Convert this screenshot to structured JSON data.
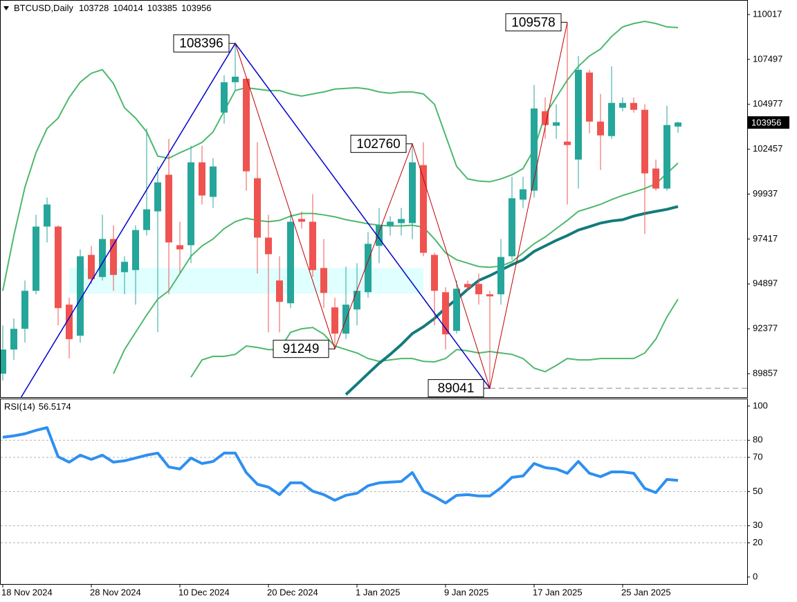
{
  "chart_data": [
    {
      "type": "candlestick",
      "symbol": "BTCUSD,Daily",
      "header_values": [
        103728,
        104014,
        103385,
        103956
      ],
      "categories": [
        "18 Nov 2024",
        null,
        null,
        null,
        null,
        null,
        null,
        null,
        "28 Nov 2024",
        null,
        null,
        null,
        null,
        null,
        null,
        null,
        "10 Dec 2024",
        null,
        null,
        null,
        null,
        null,
        null,
        null,
        "20 Dec 2024",
        null,
        null,
        null,
        null,
        null,
        null,
        null,
        "1 Jan 2025",
        null,
        null,
        null,
        null,
        null,
        null,
        null,
        "9 Jan 2025",
        null,
        null,
        null,
        null,
        null,
        null,
        null,
        "17 Jan 2025",
        null,
        null,
        null,
        null,
        null,
        null,
        null,
        "25 Jan 2025",
        null,
        null,
        null,
        null,
        null
      ],
      "open": [
        89856,
        91213,
        92377,
        94509,
        98114,
        98114,
        93733,
        91989,
        96525,
        95284,
        97417,
        95555,
        95672,
        97920,
        98967,
        101022,
        97068,
        97068,
        101720,
        99781,
        104511,
        106217,
        106411,
        100828,
        97494,
        95090,
        93810,
        98541,
        98386,
        95788,
        93578,
        92105,
        93462,
        94431,
        97029,
        98153,
        98308,
        98308,
        101565,
        96525,
        94431,
        92260,
        94896,
        94896,
        94314,
        94314,
        96447,
        99626,
        100130,
        104589,
        103775,
        102883,
        101875,
        106760,
        104007,
        103193,
        104783,
        105054,
        104667,
        101371,
        100247,
        103728
      ],
      "high": [
        92570,
        92958,
        95090,
        98773,
        99743,
        98192,
        94121,
        96835,
        97029,
        98773,
        98192,
        96447,
        98192,
        103620,
        101488,
        103038,
        98386,
        102651,
        102651,
        101953,
        106605,
        108396,
        106527,
        102844,
        98773,
        96447,
        98967,
        98967,
        99936,
        97417,
        94121,
        95865,
        96059,
        97804,
        99161,
        98696,
        99161,
        102760,
        102844,
        96641,
        94702,
        95090,
        95090,
        95477,
        94509,
        97417,
        100906,
        100906,
        106062,
        105364,
        104977,
        109578,
        107690,
        106915,
        105558,
        107109,
        105364,
        105364,
        104977,
        101875,
        104899,
        104014
      ],
      "low": [
        89468,
        90632,
        91601,
        94314,
        97223,
        92570,
        90709,
        91601,
        94896,
        95090,
        94509,
        94314,
        93733,
        97610,
        92182,
        94314,
        95477,
        96059,
        99355,
        99161,
        103891,
        105752,
        100130,
        95477,
        92182,
        92182,
        93539,
        97998,
        95284,
        93539,
        91249,
        91795,
        92570,
        94121,
        96059,
        97610,
        97610,
        97417,
        96447,
        92570,
        91213,
        92105,
        94509,
        93733,
        89041,
        93733,
        96253,
        99161,
        99743,
        103038,
        103038,
        99355,
        100247,
        103348,
        101293,
        103038,
        104589,
        104511,
        97688,
        100130,
        100130,
        103385
      ],
      "close": [
        91213,
        92377,
        94509,
        98114,
        99355,
        93539,
        91795,
        96447,
        95168,
        97417,
        95400,
        96137,
        97920,
        99083,
        100596,
        97223,
        96835,
        101720,
        99859,
        101488,
        106217,
        106527,
        101216,
        97494,
        96564,
        93888,
        98386,
        98386,
        95672,
        94392,
        92105,
        93733,
        94509,
        97145,
        98192,
        98386,
        98541,
        101720,
        96641,
        94509,
        92066,
        94625,
        94702,
        94314,
        94198,
        96408,
        99704,
        100208,
        104744,
        103813,
        103968,
        102689,
        106915,
        104007,
        103232,
        105054,
        105054,
        104667,
        101100,
        100247,
        103813,
        103956
      ],
      "up_color": "#26a69a",
      "down_color": "#ef5350",
      "series": [
        {
          "color": "#4cb86c",
          "values": [
            94510,
            97610,
            100320,
            102260,
            103620,
            104200,
            105360,
            106220,
            106720,
            106920,
            106140,
            104780,
            104200,
            103430,
            102070,
            101950,
            102260,
            102530,
            102840,
            103430,
            104590,
            105750,
            105910,
            105830,
            105750,
            105750,
            105560,
            105440,
            105560,
            105670,
            105830,
            105870,
            105910,
            105830,
            105670,
            105600,
            105670,
            105670,
            105560,
            104980,
            103230,
            101490,
            100790,
            100670,
            100630,
            100790,
            101020,
            101370,
            102460,
            104400,
            105360,
            106330,
            107110,
            107690,
            108080,
            108780,
            109320,
            109510,
            109630,
            109510,
            109320,
            109280
          ]
        },
        {
          "color": "#4cb86c",
          "values": [
            null,
            null,
            null,
            null,
            null,
            null,
            null,
            null,
            null,
            null,
            89860,
            91210,
            92180,
            93150,
            94040,
            94510,
            95480,
            96450,
            97030,
            97420,
            98000,
            98390,
            98580,
            98460,
            98390,
            98460,
            98700,
            98850,
            98850,
            98770,
            98660,
            98500,
            98390,
            98270,
            98190,
            98150,
            98150,
            98190,
            98080,
            97420,
            96640,
            96250,
            96060,
            95870,
            95830,
            95900,
            96140,
            96640,
            97150,
            97530,
            98000,
            98460,
            98970,
            99160,
            99360,
            99630,
            99860,
            100050,
            100250,
            100520,
            101100,
            101680
          ]
        },
        {
          "color": "#4cb86c",
          "values": [
            null,
            null,
            null,
            null,
            null,
            null,
            null,
            null,
            null,
            null,
            null,
            null,
            null,
            null,
            null,
            null,
            null,
            89660,
            90630,
            90830,
            90830,
            90940,
            91410,
            91330,
            91210,
            91210,
            92180,
            92380,
            92450,
            92070,
            91410,
            91210,
            91020,
            90710,
            90550,
            90630,
            90710,
            90710,
            90550,
            90520,
            90710,
            91210,
            91140,
            91020,
            91100,
            91020,
            90940,
            90710,
            90170,
            89970,
            90320,
            90710,
            90630,
            90630,
            90710,
            90710,
            90710,
            90710,
            91020,
            91800,
            93040,
            94040
          ]
        },
        {
          "color": "#137b7b",
          "values": [
            null,
            null,
            null,
            null,
            null,
            null,
            null,
            null,
            null,
            null,
            null,
            null,
            null,
            null,
            null,
            null,
            null,
            null,
            null,
            null,
            null,
            null,
            null,
            null,
            null,
            null,
            null,
            null,
            null,
            null,
            null,
            88690,
            89270,
            89860,
            90440,
            90940,
            91490,
            92110,
            92490,
            92960,
            93540,
            94040,
            94590,
            95090,
            95360,
            95670,
            95980,
            96250,
            96720,
            97030,
            97340,
            97610,
            97920,
            98110,
            98310,
            98430,
            98500,
            98700,
            98850,
            98970,
            99080,
            99240
          ]
        }
      ],
      "pivots": [
        {
          "x": 21,
          "value": 108396
        },
        {
          "x": 30,
          "value": 91249
        },
        {
          "x": 37,
          "value": 102760
        },
        {
          "x": 44,
          "value": 89041
        },
        {
          "x": 51,
          "value": 109578
        }
      ],
      "zone": {
        "top": 95790,
        "bottom": 94350
      },
      "ylim": [
        88500,
        110792
      ],
      "yticks": [
        110017,
        107497,
        104977,
        102457,
        99937,
        97417,
        94897,
        92377,
        89857
      ]
    },
    {
      "type": "line",
      "title": "RSI(14)",
      "value": 56.5174,
      "series": [
        {
          "color": "#2e8ff0",
          "values": [
            81.8,
            82.6,
            83.8,
            85.8,
            87.4,
            70.4,
            67.2,
            71.3,
            68.8,
            71.3,
            67.2,
            68.0,
            69.6,
            71.3,
            72.5,
            64.4,
            63.2,
            69.6,
            66.4,
            67.6,
            72.5,
            72.5,
            61.1,
            54.3,
            52.6,
            48.2,
            55.1,
            55.1,
            50.2,
            48.2,
            44.9,
            47.8,
            49.0,
            53.4,
            55.1,
            55.5,
            55.9,
            61.1,
            50.2,
            47.0,
            43.3,
            47.8,
            48.2,
            47.4,
            47.4,
            52.2,
            58.3,
            59.1,
            66.4,
            64.0,
            63.2,
            60.7,
            67.6,
            60.7,
            58.7,
            61.5,
            61.5,
            60.7,
            51.8,
            49.4,
            57.1,
            56.5174
          ]
        }
      ],
      "ylim": [
        -4.5,
        104
      ],
      "yticks": [
        100,
        80,
        70,
        50,
        30,
        20,
        0
      ],
      "grid": true
    }
  ]
}
